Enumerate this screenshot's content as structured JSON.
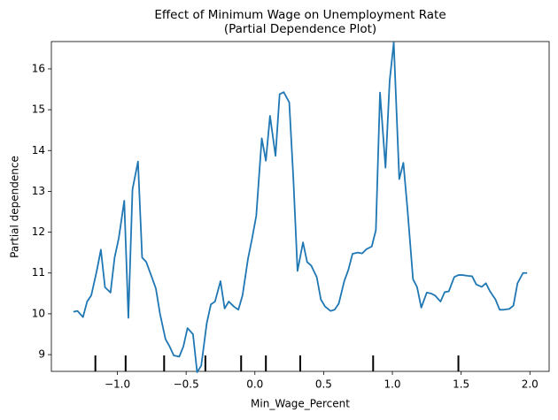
{
  "chart_data": {
    "type": "line",
    "title": "Effect of Minimum Wage on Unemployment Rate",
    "subtitle": "(Partial Dependence Plot)",
    "x_label": "Min_Wage_Percent",
    "y_label": "Partial dependence",
    "color": "#1f77b4",
    "rug_color": "#000000",
    "x": [
      -1.32,
      -1.29,
      -1.25,
      -1.22,
      -1.19,
      -1.15,
      -1.12,
      -1.09,
      -1.05,
      -1.02,
      -0.99,
      -0.95,
      -0.92,
      -0.89,
      -0.85,
      -0.82,
      -0.79,
      -0.75,
      -0.72,
      -0.69,
      -0.65,
      -0.62,
      -0.59,
      -0.55,
      -0.52,
      -0.49,
      -0.45,
      -0.42,
      -0.39,
      -0.35,
      -0.32,
      -0.29,
      -0.25,
      -0.22,
      -0.19,
      -0.15,
      -0.12,
      -0.09,
      -0.05,
      -0.02,
      0.01,
      0.05,
      0.08,
      0.11,
      0.15,
      0.18,
      0.21,
      0.25,
      0.28,
      0.31,
      0.35,
      0.38,
      0.41,
      0.45,
      0.48,
      0.51,
      0.55,
      0.58,
      0.61,
      0.65,
      0.68,
      0.71,
      0.75,
      0.78,
      0.81,
      0.85,
      0.88,
      0.91,
      0.95,
      0.98,
      1.01,
      1.05,
      1.08,
      1.11,
      1.15,
      1.18,
      1.21,
      1.25,
      1.28,
      1.31,
      1.35,
      1.38,
      1.41,
      1.45,
      1.48,
      1.51,
      1.55,
      1.58,
      1.61,
      1.65,
      1.68,
      1.71,
      1.75,
      1.78,
      1.81,
      1.85,
      1.88,
      1.91,
      1.95,
      1.98
    ],
    "values": [
      10.05,
      10.07,
      9.92,
      10.3,
      10.45,
      11.05,
      11.57,
      10.65,
      10.52,
      11.38,
      11.85,
      12.77,
      9.9,
      13.05,
      13.73,
      11.38,
      11.27,
      10.9,
      10.62,
      10.0,
      9.38,
      9.2,
      8.98,
      8.95,
      9.2,
      9.65,
      9.5,
      8.57,
      8.73,
      9.77,
      10.23,
      10.3,
      10.8,
      10.13,
      10.3,
      10.17,
      10.1,
      10.45,
      11.35,
      11.85,
      12.4,
      14.3,
      13.75,
      14.85,
      13.87,
      15.38,
      15.43,
      15.18,
      13.3,
      11.05,
      11.75,
      11.27,
      11.18,
      10.9,
      10.35,
      10.18,
      10.07,
      10.1,
      10.25,
      10.8,
      11.08,
      11.47,
      11.5,
      11.48,
      11.58,
      11.65,
      12.05,
      15.42,
      13.58,
      15.7,
      16.65,
      13.3,
      13.7,
      12.55,
      10.85,
      10.65,
      10.15,
      10.52,
      10.5,
      10.45,
      10.3,
      10.53,
      10.55,
      10.9,
      10.95,
      10.95,
      10.93,
      10.92,
      10.72,
      10.66,
      10.75,
      10.55,
      10.35,
      10.1,
      10.1,
      10.12,
      10.2,
      10.75,
      11.0,
      11.0
    ],
    "deciles": [
      -1.16,
      -0.94,
      -0.66,
      -0.36,
      -0.1,
      0.08,
      0.33,
      0.86,
      1.48
    ],
    "xlim": [
      -1.48,
      2.14
    ],
    "ylim": [
      8.59,
      16.67
    ],
    "xticks": [
      {
        "value": -1,
        "label": "−1.0"
      },
      {
        "value": -0.5,
        "label": "−0.5"
      },
      {
        "value": 0,
        "label": "0.0"
      },
      0.5,
      {
        "value": 1,
        "label": "1.0"
      },
      1.5,
      {
        "value": 2,
        "label": "2.0"
      }
    ],
    "yticks": [
      9,
      10,
      11,
      12,
      13,
      14,
      15,
      16
    ]
  }
}
